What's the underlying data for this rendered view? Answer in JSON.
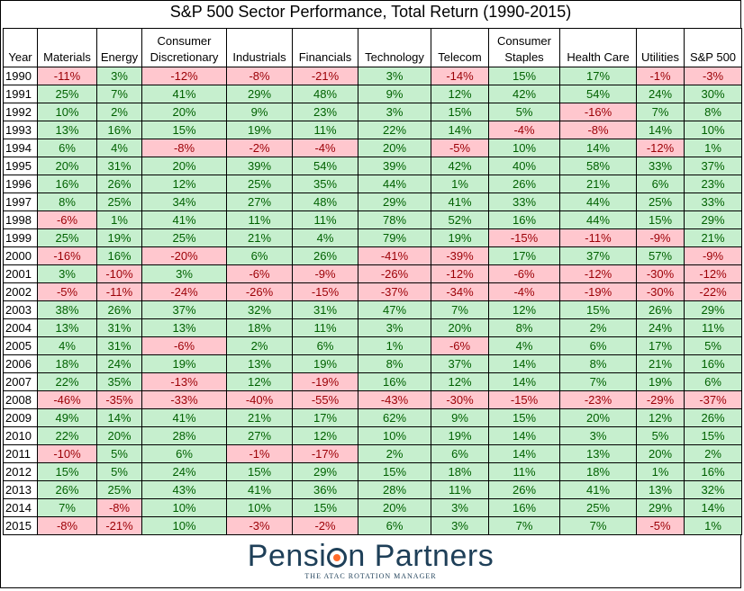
{
  "title": "S&P 500 Sector Performance, Total Return (1990-2015)",
  "logo": {
    "name_part1": "Pensi",
    "name_part2": "n Partners",
    "tagline": "THE ATAC ROTATION MANAGER"
  },
  "colors": {
    "positive_fill": "#c6efce",
    "positive_text": "#006100",
    "negative_fill": "#ffc7ce",
    "negative_text": "#9c0006"
  },
  "chart_data": {
    "type": "table",
    "title": "S&P 500 Sector Performance, Total Return (1990-2015)",
    "year_header": "Year",
    "columns": [
      "Materials",
      "Energy",
      "Consumer Discretionary",
      "Industrials",
      "Financials",
      "Technology",
      "Telecom",
      "Consumer Staples",
      "Health Care",
      "Utilities",
      "S&P 500"
    ],
    "value_suffix": "%",
    "rows": [
      {
        "year": "1990",
        "values": [
          -11,
          3,
          -12,
          -8,
          -21,
          3,
          -14,
          15,
          17,
          -1,
          -3
        ]
      },
      {
        "year": "1991",
        "values": [
          25,
          7,
          41,
          29,
          48,
          9,
          12,
          42,
          54,
          24,
          30
        ]
      },
      {
        "year": "1992",
        "values": [
          10,
          2,
          20,
          9,
          23,
          3,
          15,
          5,
          -16,
          7,
          8
        ]
      },
      {
        "year": "1993",
        "values": [
          13,
          16,
          15,
          19,
          11,
          22,
          14,
          -4,
          -8,
          14,
          10
        ]
      },
      {
        "year": "1994",
        "values": [
          6,
          4,
          -8,
          -2,
          -4,
          20,
          -5,
          10,
          14,
          -12,
          1
        ]
      },
      {
        "year": "1995",
        "values": [
          20,
          31,
          20,
          39,
          54,
          39,
          42,
          40,
          58,
          33,
          37
        ]
      },
      {
        "year": "1996",
        "values": [
          16,
          26,
          12,
          25,
          35,
          44,
          1,
          26,
          21,
          6,
          23
        ]
      },
      {
        "year": "1997",
        "values": [
          8,
          25,
          34,
          27,
          48,
          29,
          41,
          33,
          44,
          25,
          33
        ]
      },
      {
        "year": "1998",
        "values": [
          -6,
          1,
          41,
          11,
          11,
          78,
          52,
          16,
          44,
          15,
          29
        ]
      },
      {
        "year": "1999",
        "values": [
          25,
          19,
          25,
          21,
          4,
          79,
          19,
          -15,
          -11,
          -9,
          21
        ]
      },
      {
        "year": "2000",
        "values": [
          -16,
          16,
          -20,
          6,
          26,
          -41,
          -39,
          17,
          37,
          57,
          -9
        ]
      },
      {
        "year": "2001",
        "values": [
          3,
          -10,
          3,
          -6,
          -9,
          -26,
          -12,
          -6,
          -12,
          -30,
          -12
        ]
      },
      {
        "year": "2002",
        "values": [
          -5,
          -11,
          -24,
          -26,
          -15,
          -37,
          -34,
          -4,
          -19,
          -30,
          -22
        ]
      },
      {
        "year": "2003",
        "values": [
          38,
          26,
          37,
          32,
          31,
          47,
          7,
          12,
          15,
          26,
          29
        ]
      },
      {
        "year": "2004",
        "values": [
          13,
          31,
          13,
          18,
          11,
          3,
          20,
          8,
          2,
          24,
          11
        ]
      },
      {
        "year": "2005",
        "values": [
          4,
          31,
          -6,
          2,
          6,
          1,
          -6,
          4,
          6,
          17,
          5
        ]
      },
      {
        "year": "2006",
        "values": [
          18,
          24,
          19,
          13,
          19,
          8,
          37,
          14,
          8,
          21,
          16
        ]
      },
      {
        "year": "2007",
        "values": [
          22,
          35,
          -13,
          12,
          -19,
          16,
          12,
          14,
          7,
          19,
          6
        ]
      },
      {
        "year": "2008",
        "values": [
          -46,
          -35,
          -33,
          -40,
          -55,
          -43,
          -30,
          -15,
          -23,
          -29,
          -37
        ]
      },
      {
        "year": "2009",
        "values": [
          49,
          14,
          41,
          21,
          17,
          62,
          9,
          15,
          20,
          12,
          26
        ]
      },
      {
        "year": "2010",
        "values": [
          22,
          20,
          28,
          27,
          12,
          10,
          19,
          14,
          3,
          5,
          15
        ]
      },
      {
        "year": "2011",
        "values": [
          -10,
          5,
          6,
          -1,
          -17,
          2,
          6,
          14,
          13,
          20,
          2
        ]
      },
      {
        "year": "2012",
        "values": [
          15,
          5,
          24,
          15,
          29,
          15,
          18,
          11,
          18,
          1,
          16
        ]
      },
      {
        "year": "2013",
        "values": [
          26,
          25,
          43,
          41,
          36,
          28,
          11,
          26,
          41,
          13,
          32
        ]
      },
      {
        "year": "2014",
        "values": [
          7,
          -8,
          10,
          10,
          15,
          20,
          3,
          16,
          25,
          29,
          14
        ]
      },
      {
        "year": "2015",
        "values": [
          -8,
          -21,
          10,
          -3,
          -2,
          6,
          3,
          7,
          7,
          -5,
          1
        ]
      }
    ]
  }
}
